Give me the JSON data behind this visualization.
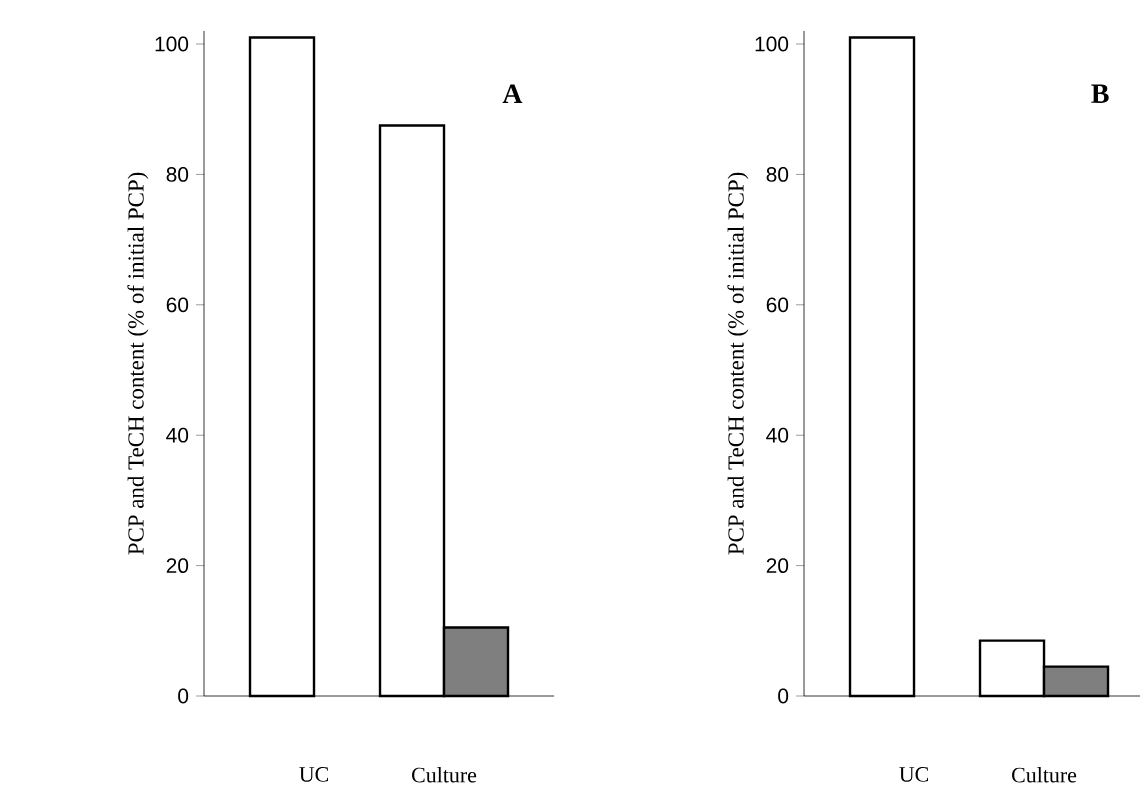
{
  "chart_data": [
    {
      "type": "bar",
      "title": "A",
      "ylabel": "PCP and TeCH content (% of initial PCP)",
      "categories": [
        "UC",
        "Culture"
      ],
      "series": [
        {
          "color": "#ffffff",
          "values": [
            101,
            87.5
          ]
        },
        {
          "color": "#7f7f7f",
          "values": [
            null,
            10.5
          ]
        }
      ],
      "ylim": [
        0,
        102
      ],
      "yticks": [
        0,
        20,
        40,
        60,
        80,
        100
      ],
      "grid": false
    },
    {
      "type": "bar",
      "title": "B",
      "ylabel": "PCP and TeCH content (% of initial PCP)",
      "categories": [
        "UC",
        "Culture"
      ],
      "series": [
        {
          "color": "#ffffff",
          "values": [
            101,
            8.5
          ]
        },
        {
          "color": "#7f7f7f",
          "values": [
            null,
            4.5
          ]
        }
      ],
      "ylim": [
        0,
        102
      ],
      "yticks": [
        0,
        20,
        40,
        60,
        80,
        100
      ],
      "grid": false
    }
  ]
}
